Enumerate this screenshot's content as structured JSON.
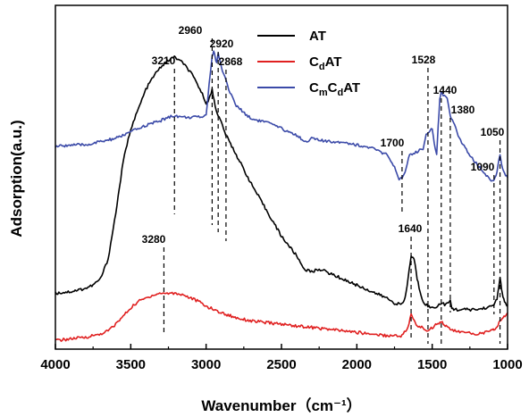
{
  "chart_data": {
    "type": "line",
    "xlabel": "Wavenumber（cm⁻¹）",
    "ylabel": "Adsorption(a.u.)",
    "xlim": [
      4000,
      1000
    ],
    "ylim": [
      0,
      100
    ],
    "x_reversed": true,
    "x_ticks": [
      4000,
      3500,
      3000,
      2500,
      2000,
      1500,
      1000
    ],
    "y_ticks_shown": false,
    "grid": false,
    "legend_position": "top-center",
    "series": [
      {
        "name": "AT",
        "color": "#000000",
        "points": [
          [
            4000,
            15.5
          ],
          [
            3900,
            16
          ],
          [
            3800,
            17
          ],
          [
            3750,
            18
          ],
          [
            3700,
            20
          ],
          [
            3650,
            26
          ],
          [
            3600,
            40
          ],
          [
            3550,
            56
          ],
          [
            3500,
            66
          ],
          [
            3450,
            72
          ],
          [
            3400,
            78
          ],
          [
            3350,
            82
          ],
          [
            3300,
            85
          ],
          [
            3250,
            87
          ],
          [
            3210,
            88
          ],
          [
            3150,
            86
          ],
          [
            3100,
            83
          ],
          [
            3050,
            79
          ],
          [
            3000,
            74
          ],
          [
            2980,
            75
          ],
          [
            2960,
            78
          ],
          [
            2940,
            73
          ],
          [
            2920,
            70
          ],
          [
            2900,
            68
          ],
          [
            2868,
            64
          ],
          [
            2800,
            58
          ],
          [
            2700,
            49
          ],
          [
            2600,
            41
          ],
          [
            2500,
            33
          ],
          [
            2400,
            27
          ],
          [
            2350,
            23
          ],
          [
            2300,
            22
          ],
          [
            2250,
            23
          ],
          [
            2200,
            22
          ],
          [
            2100,
            20
          ],
          [
            2000,
            18
          ],
          [
            1900,
            16
          ],
          [
            1800,
            14
          ],
          [
            1750,
            12.5
          ],
          [
            1700,
            12
          ],
          [
            1680,
            14
          ],
          [
            1660,
            20
          ],
          [
            1640,
            27
          ],
          [
            1620,
            26
          ],
          [
            1600,
            20
          ],
          [
            1580,
            16
          ],
          [
            1560,
            13
          ],
          [
            1528,
            11.5
          ],
          [
            1500,
            11
          ],
          [
            1470,
            11.5
          ],
          [
            1440,
            12.5
          ],
          [
            1410,
            12
          ],
          [
            1380,
            13
          ],
          [
            1370,
            11
          ],
          [
            1350,
            10.5
          ],
          [
            1300,
            10.5
          ],
          [
            1200,
            10.5
          ],
          [
            1150,
            11
          ],
          [
            1100,
            11.5
          ],
          [
            1090,
            12
          ],
          [
            1070,
            14
          ],
          [
            1050,
            20
          ],
          [
            1040,
            17
          ],
          [
            1030,
            14
          ],
          [
            1020,
            13
          ],
          [
            1010,
            12
          ],
          [
            1000,
            12
          ]
        ]
      },
      {
        "name": "CdAT",
        "color": "#e02020",
        "points": [
          [
            4000,
            1
          ],
          [
            3900,
            1.5
          ],
          [
            3800,
            2
          ],
          [
            3750,
            2.5
          ],
          [
            3700,
            3
          ],
          [
            3650,
            4
          ],
          [
            3600,
            6
          ],
          [
            3550,
            8.5
          ],
          [
            3500,
            11
          ],
          [
            3450,
            13
          ],
          [
            3400,
            14
          ],
          [
            3350,
            15
          ],
          [
            3300,
            15.5
          ],
          [
            3250,
            15.5
          ],
          [
            3200,
            15.5
          ],
          [
            3150,
            15
          ],
          [
            3100,
            14
          ],
          [
            3050,
            13
          ],
          [
            3000,
            11.5
          ],
          [
            2950,
            10.5
          ],
          [
            2900,
            9.5
          ],
          [
            2800,
            8
          ],
          [
            2700,
            7
          ],
          [
            2600,
            6.5
          ],
          [
            2500,
            6
          ],
          [
            2400,
            5.5
          ],
          [
            2300,
            5
          ],
          [
            2200,
            4.5
          ],
          [
            2100,
            4
          ],
          [
            2000,
            3.5
          ],
          [
            1900,
            3
          ],
          [
            1800,
            2.5
          ],
          [
            1700,
            2.5
          ],
          [
            1660,
            5
          ],
          [
            1640,
            9
          ],
          [
            1620,
            7
          ],
          [
            1600,
            5.5
          ],
          [
            1570,
            5
          ],
          [
            1528,
            4
          ],
          [
            1500,
            5
          ],
          [
            1470,
            6
          ],
          [
            1440,
            7
          ],
          [
            1420,
            6
          ],
          [
            1400,
            5
          ],
          [
            1380,
            4.5
          ],
          [
            1350,
            4
          ],
          [
            1300,
            3.5
          ],
          [
            1200,
            3
          ],
          [
            1150,
            3.5
          ],
          [
            1100,
            4
          ],
          [
            1090,
            4.5
          ],
          [
            1070,
            5
          ],
          [
            1050,
            7
          ],
          [
            1030,
            8
          ],
          [
            1010,
            9
          ],
          [
            1000,
            9.5
          ]
        ]
      },
      {
        "name": "CmCdAT",
        "color": "#3b4aa8",
        "points": [
          [
            4000,
            60.5
          ],
          [
            3900,
            61
          ],
          [
            3800,
            61
          ],
          [
            3700,
            62
          ],
          [
            3600,
            63
          ],
          [
            3500,
            65
          ],
          [
            3400,
            67
          ],
          [
            3300,
            68.5
          ],
          [
            3250,
            69.5
          ],
          [
            3210,
            70
          ],
          [
            3150,
            69.5
          ],
          [
            3100,
            69.5
          ],
          [
            3050,
            69.5
          ],
          [
            3000,
            70
          ],
          [
            2980,
            80
          ],
          [
            2960,
            88
          ],
          [
            2950,
            90
          ],
          [
            2940,
            88
          ],
          [
            2930,
            86
          ],
          [
            2920,
            89
          ],
          [
            2900,
            85
          ],
          [
            2868,
            81
          ],
          [
            2850,
            78
          ],
          [
            2800,
            73
          ],
          [
            2700,
            69
          ],
          [
            2600,
            68
          ],
          [
            2500,
            66
          ],
          [
            2400,
            64
          ],
          [
            2340,
            62
          ],
          [
            2300,
            63
          ],
          [
            2200,
            62
          ],
          [
            2100,
            62
          ],
          [
            2000,
            61
          ],
          [
            1900,
            60
          ],
          [
            1800,
            58
          ],
          [
            1750,
            54
          ],
          [
            1720,
            50
          ],
          [
            1700,
            51
          ],
          [
            1680,
            53
          ],
          [
            1650,
            58
          ],
          [
            1600,
            59
          ],
          [
            1560,
            60
          ],
          [
            1540,
            64
          ],
          [
            1528,
            65
          ],
          [
            1500,
            66
          ],
          [
            1480,
            60
          ],
          [
            1470,
            58
          ],
          [
            1460,
            67
          ],
          [
            1450,
            75
          ],
          [
            1440,
            77
          ],
          [
            1420,
            76
          ],
          [
            1400,
            75
          ],
          [
            1380,
            70
          ],
          [
            1360,
            68
          ],
          [
            1320,
            63
          ],
          [
            1250,
            58
          ],
          [
            1200,
            55
          ],
          [
            1150,
            52
          ],
          [
            1100,
            50
          ],
          [
            1090,
            50
          ],
          [
            1070,
            53
          ],
          [
            1050,
            58
          ],
          [
            1040,
            55
          ],
          [
            1020,
            52
          ],
          [
            1000,
            51
          ]
        ]
      }
    ],
    "peak_annotations": [
      {
        "label": "3210",
        "x": 3210
      },
      {
        "label": "2960",
        "x": 2960
      },
      {
        "label": "2920",
        "x": 2920
      },
      {
        "label": "2868",
        "x": 2868
      },
      {
        "label": "3280",
        "x": 3280
      },
      {
        "label": "1700",
        "x": 1700
      },
      {
        "label": "1640",
        "x": 1640
      },
      {
        "label": "1528",
        "x": 1528
      },
      {
        "label": "1440",
        "x": 1440
      },
      {
        "label": "1380",
        "x": 1380
      },
      {
        "label": "1090",
        "x": 1090
      },
      {
        "label": "1050",
        "x": 1050
      }
    ]
  },
  "legend_labels": {
    "at": {
      "main": "AT"
    },
    "cdat": {
      "c1": "C",
      "s1": "d",
      "tail": "AT"
    },
    "cmcdat": {
      "c1": "C",
      "s1": "m",
      "c2": "C",
      "s2": "d",
      "tail": "AT"
    }
  }
}
